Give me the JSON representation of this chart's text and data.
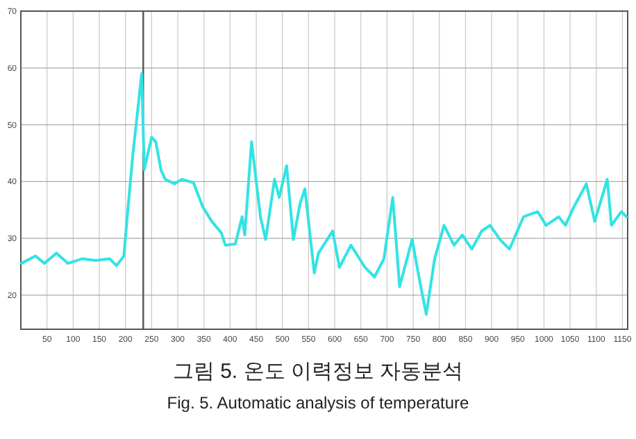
{
  "chart_data": {
    "type": "line",
    "x": [
      1,
      28,
      45,
      68,
      90,
      117,
      143,
      170,
      183,
      197,
      205,
      214,
      231,
      236,
      250,
      258,
      268,
      276,
      294,
      308,
      330,
      348,
      365,
      383,
      391,
      410,
      423,
      428,
      441,
      458,
      468,
      485,
      494,
      508,
      521,
      534,
      543,
      561,
      569,
      596,
      609,
      631,
      657,
      676,
      694,
      711,
      724,
      748,
      761,
      775,
      791,
      809,
      828,
      844,
      862,
      881,
      897,
      916,
      934,
      961,
      988,
      1004,
      1028,
      1041,
      1057,
      1081,
      1097,
      1121,
      1129,
      1148,
      1158
    ],
    "series": [
      {
        "color": "#33e3e3",
        "values": [
          25.6,
          26.9,
          25.6,
          27.4,
          25.6,
          26.4,
          26.1,
          26.4,
          25.2,
          26.9,
          35.5,
          44.6,
          59,
          42.1,
          47.8,
          47,
          42,
          40.4,
          39.6,
          40.4,
          39.8,
          35.5,
          33,
          31,
          28.8,
          29,
          33.8,
          30.6,
          47,
          33.8,
          29.8,
          40.4,
          37.2,
          42.8,
          29.8,
          36.2,
          38.7,
          23.9,
          27.4,
          31.3,
          24.9,
          28.8,
          25,
          23.2,
          26.4,
          37.2,
          21.5,
          29.8,
          23.2,
          16.6,
          26.4,
          32.3,
          28.8,
          30.6,
          28.1,
          31.3,
          32.3,
          29.8,
          28.1,
          33.8,
          34.7,
          32.3,
          33.8,
          32.3,
          35.5,
          39.6,
          33,
          40.4,
          32.3,
          34.7,
          33.8
        ]
      }
    ],
    "xlim": [
      0,
      1160
    ],
    "ylim": [
      14,
      70
    ],
    "xticks": [
      50,
      100,
      150,
      200,
      250,
      300,
      350,
      400,
      450,
      500,
      550,
      600,
      650,
      700,
      750,
      800,
      850,
      900,
      950,
      1000,
      1050,
      1100,
      1150
    ],
    "yticks": [
      20,
      30,
      40,
      50,
      60,
      70
    ],
    "grid": true,
    "ref_lines": [
      {
        "axis": "x",
        "value": 234,
        "color": "#555555"
      }
    ],
    "annotations": [
      "그림 5. 온도 이력정보 자동분석",
      "Fig. 5. Automatic analysis of temperature"
    ]
  }
}
